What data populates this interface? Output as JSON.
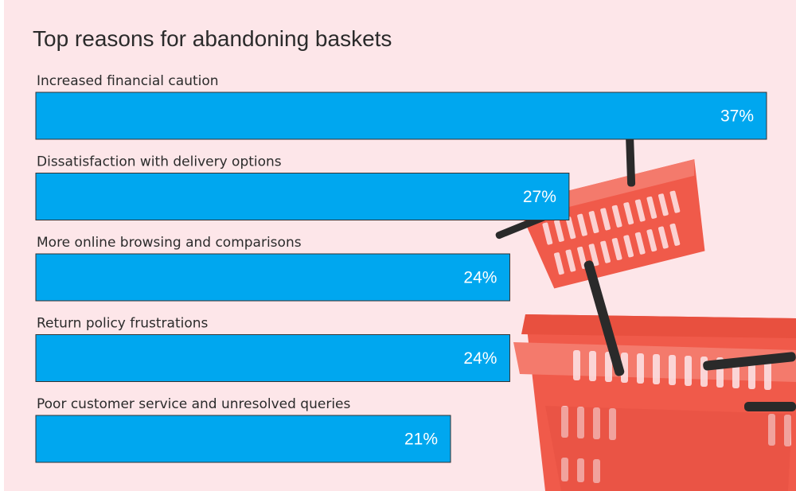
{
  "chart_data": {
    "type": "bar",
    "orientation": "horizontal",
    "title": "Top reasons for abandoning baskets",
    "categories": [
      "Increased financial caution",
      "Dissatisfaction with delivery options",
      "More online browsing and comparisons",
      "Return policy frustrations",
      "Poor customer service and unresolved queries"
    ],
    "values": [
      37,
      27,
      24,
      24,
      21
    ],
    "value_labels": [
      "37%",
      "27%",
      "24%",
      "24%",
      "21%"
    ],
    "unit": "%",
    "xlim": [
      0,
      37
    ],
    "grid": false,
    "legend": "none"
  },
  "colors": {
    "background": "#fde6e9",
    "bar": "#00a7ef",
    "bar_border": "#333333",
    "bar_text": "#ffffff",
    "text": "#2b2b2b",
    "basket": "#f05a4a",
    "basket_shade": "#c83a2e",
    "basket_handle": "#2a2a2a"
  },
  "decoration": {
    "image": "red-shopping-baskets"
  }
}
